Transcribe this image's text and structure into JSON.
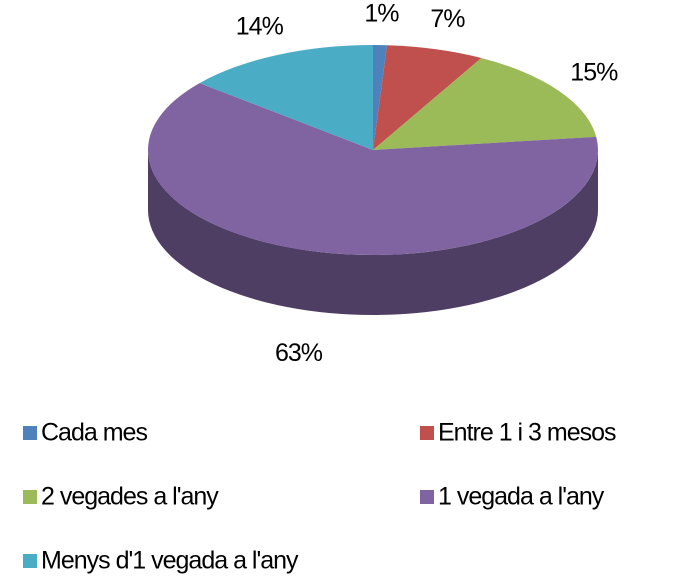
{
  "chart_data": {
    "type": "pie",
    "categories": [
      "Cada mes",
      "Entre 1 i 3 mesos",
      "2 vegades a l'any",
      "1 vegada a l'any",
      "Menys d'1 vegada a l'any"
    ],
    "values": [
      1,
      7,
      15,
      63,
      14
    ],
    "value_labels": [
      "1%",
      "7%",
      "15%",
      "63%",
      "14%"
    ],
    "colors": [
      "#4f81bd",
      "#c0504d",
      "#9bbb59",
      "#8064a2",
      "#4bacc6"
    ],
    "legend": "bottom"
  }
}
